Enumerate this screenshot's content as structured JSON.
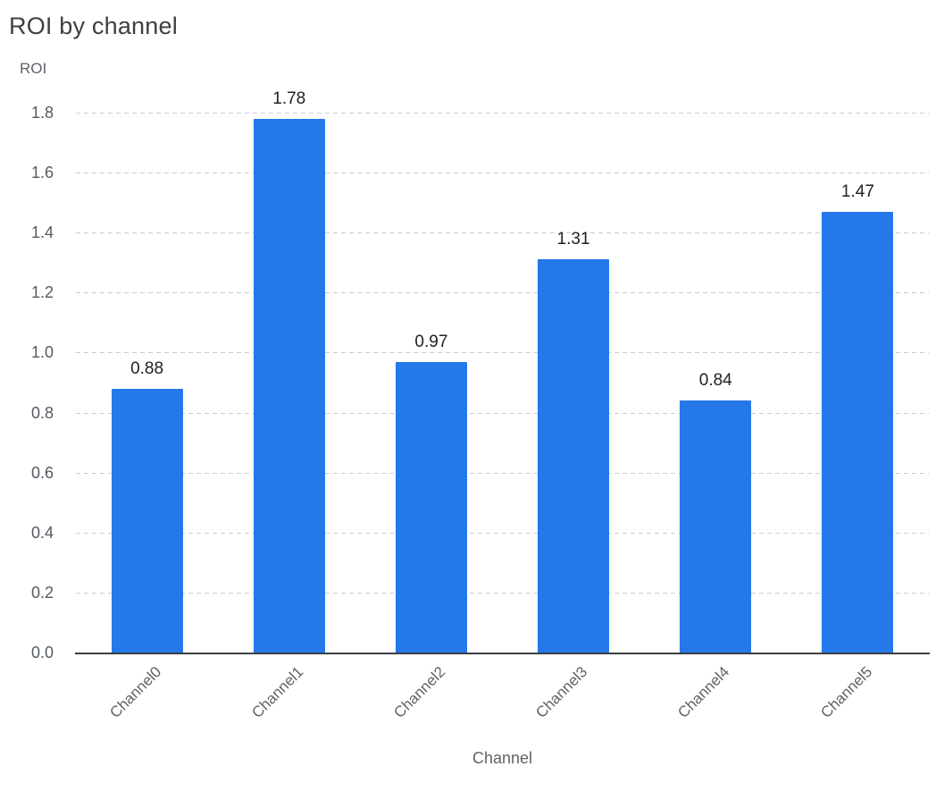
{
  "chart_data": {
    "type": "bar",
    "title": "ROI by channel",
    "ylabel": "ROI",
    "xlabel": "Channel",
    "categories": [
      "Channel0",
      "Channel1",
      "Channel2",
      "Channel3",
      "Channel4",
      "Channel5"
    ],
    "values": [
      0.88,
      1.78,
      0.97,
      1.31,
      0.84,
      1.47
    ],
    "value_labels": [
      "0.88",
      "1.78",
      "0.97",
      "1.31",
      "0.84",
      "1.47"
    ],
    "ylim": [
      0,
      1.8
    ],
    "ytick_step": 0.2,
    "yticks": [
      "0.0",
      "0.2",
      "0.4",
      "0.6",
      "0.8",
      "1.0",
      "1.2",
      "1.4",
      "1.6",
      "1.8"
    ],
    "grid": "horizontal-dashed",
    "legend": "none",
    "bar_color": "#2478EA",
    "colors": {
      "bar": "#2478EA",
      "title": "#3C4043",
      "axis_label": "#5F6368",
      "tick_label": "#555B63",
      "value_label": "#202124",
      "gridline": "#C9CED6",
      "axis_line": "#3C4043",
      "background": "#FFFFFF"
    }
  }
}
